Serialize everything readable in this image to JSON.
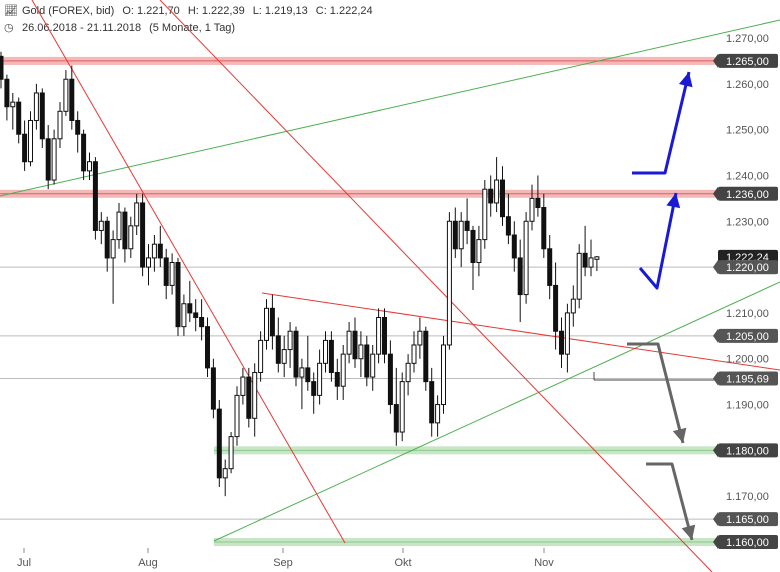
{
  "header": {
    "icon": "chart-icon",
    "symbol": "Gold (FOREX, bid)",
    "open": "O: 1.221,70",
    "high": "H: 1.222,39",
    "low": "L: 1.219,13",
    "close": "C: 1.222,24",
    "clock_icon": "clock-icon",
    "date_range": "26.06.2018 - 21.11.2018",
    "period": "(5 Monate, 1 Tag)"
  },
  "chart_data": {
    "type": "candlestick",
    "ylim": [
      1158,
      1274
    ],
    "y_ticks": [
      {
        "v": 1160,
        "label": "1.160,00"
      },
      {
        "v": 1170,
        "label": "1.170,00"
      },
      {
        "v": 1190,
        "label": "1.190,00"
      },
      {
        "v": 1200,
        "label": "1.200,00"
      },
      {
        "v": 1210,
        "label": "1.210,00"
      },
      {
        "v": 1230,
        "label": "1.230,00"
      },
      {
        "v": 1240,
        "label": "1.240,00"
      },
      {
        "v": 1250,
        "label": "1.250,00"
      },
      {
        "v": 1260,
        "label": "1.260,00"
      },
      {
        "v": 1270,
        "label": "1.270,00"
      }
    ],
    "x_ticks": [
      "Jul",
      "Aug",
      "Sep",
      "Okt",
      "Nov"
    ],
    "levels": [
      {
        "v": 1265,
        "label": "1.265,00",
        "band": "red"
      },
      {
        "v": 1236,
        "label": "1.236,00",
        "band": "red"
      },
      {
        "v": 1220,
        "label": "1.220,00",
        "band": "none"
      },
      {
        "v": 1205,
        "label": "1.205,00",
        "band": "none"
      },
      {
        "v": 1195.69,
        "label": "1.195,69",
        "band": "none"
      },
      {
        "v": 1180,
        "label": "1.180,00",
        "band": "green"
      },
      {
        "v": 1165,
        "label": "1.165,00",
        "band": "none"
      },
      {
        "v": 1160,
        "label": "1.160,00",
        "band": "green"
      }
    ],
    "current_price": {
      "v": 1222.24,
      "label": "1.222,24"
    },
    "candles": [
      [
        1266,
        1267,
        1259,
        1261
      ],
      [
        1261,
        1262,
        1252,
        1255
      ],
      [
        1255,
        1258,
        1250,
        1256
      ],
      [
        1256,
        1257,
        1247,
        1249
      ],
      [
        1249,
        1252,
        1241,
        1243
      ],
      [
        1243,
        1254,
        1242,
        1252
      ],
      [
        1252,
        1260,
        1250,
        1258
      ],
      [
        1258,
        1259,
        1246,
        1248
      ],
      [
        1248,
        1251,
        1237,
        1239
      ],
      [
        1239,
        1250,
        1238,
        1248
      ],
      [
        1248,
        1256,
        1246,
        1254
      ],
      [
        1254,
        1263,
        1253,
        1261
      ],
      [
        1261,
        1264,
        1250,
        1252
      ],
      [
        1252,
        1254,
        1245,
        1249
      ],
      [
        1249,
        1250,
        1239,
        1241
      ],
      [
        1241,
        1245,
        1239,
        1243
      ],
      [
        1243,
        1244,
        1226,
        1228
      ],
      [
        1228,
        1232,
        1225,
        1230
      ],
      [
        1230,
        1231,
        1219,
        1222
      ],
      [
        1222,
        1228,
        1212,
        1226
      ],
      [
        1226,
        1234,
        1224,
        1232
      ],
      [
        1232,
        1233,
        1221,
        1224
      ],
      [
        1224,
        1231,
        1222,
        1229
      ],
      [
        1229,
        1236,
        1227,
        1234
      ],
      [
        1234,
        1236,
        1218,
        1220
      ],
      [
        1220,
        1225,
        1216,
        1222
      ],
      [
        1222,
        1227,
        1219,
        1225
      ],
      [
        1225,
        1229,
        1220,
        1222
      ],
      [
        1222,
        1224,
        1213,
        1216
      ],
      [
        1216,
        1223,
        1214,
        1221
      ],
      [
        1221,
        1222,
        1205,
        1207
      ],
      [
        1207,
        1214,
        1205,
        1212
      ],
      [
        1212,
        1217,
        1208,
        1210
      ],
      [
        1210,
        1213,
        1206,
        1209
      ],
      [
        1209,
        1213,
        1204,
        1207
      ],
      [
        1207,
        1209,
        1196,
        1198
      ],
      [
        1198,
        1200,
        1187,
        1189
      ],
      [
        1189,
        1191,
        1172,
        1174
      ],
      [
        1174,
        1178,
        1170,
        1176
      ],
      [
        1176,
        1184,
        1175,
        1183
      ],
      [
        1183,
        1194,
        1181,
        1192
      ],
      [
        1192,
        1198,
        1190,
        1196
      ],
      [
        1196,
        1198,
        1185,
        1187
      ],
      [
        1187,
        1199,
        1183,
        1197
      ],
      [
        1197,
        1206,
        1195,
        1204
      ],
      [
        1204,
        1213,
        1202,
        1211
      ],
      [
        1211,
        1214,
        1202,
        1205
      ],
      [
        1205,
        1209,
        1197,
        1199
      ],
      [
        1199,
        1205,
        1196,
        1202
      ],
      [
        1202,
        1208,
        1198,
        1206
      ],
      [
        1206,
        1207,
        1194,
        1196
      ],
      [
        1196,
        1200,
        1189,
        1198
      ],
      [
        1198,
        1205,
        1193,
        1195
      ],
      [
        1195,
        1197,
        1188,
        1192
      ],
      [
        1192,
        1202,
        1190,
        1199
      ],
      [
        1199,
        1206,
        1197,
        1204
      ],
      [
        1204,
        1206,
        1195,
        1197
      ],
      [
        1197,
        1200,
        1191,
        1194
      ],
      [
        1194,
        1203,
        1191,
        1201
      ],
      [
        1201,
        1208,
        1199,
        1206
      ],
      [
        1206,
        1209,
        1198,
        1200
      ],
      [
        1200,
        1206,
        1196,
        1203
      ],
      [
        1203,
        1205,
        1194,
        1196
      ],
      [
        1196,
        1203,
        1193,
        1201
      ],
      [
        1201,
        1211,
        1199,
        1209
      ],
      [
        1209,
        1211,
        1199,
        1201
      ],
      [
        1201,
        1204,
        1188,
        1190
      ],
      [
        1190,
        1198,
        1181,
        1184
      ],
      [
        1184,
        1197,
        1182,
        1195
      ],
      [
        1195,
        1201,
        1192,
        1199
      ],
      [
        1199,
        1206,
        1197,
        1203
      ],
      [
        1203,
        1209,
        1200,
        1206
      ],
      [
        1206,
        1207,
        1193,
        1195
      ],
      [
        1195,
        1198,
        1183,
        1186
      ],
      [
        1186,
        1192,
        1183,
        1190
      ],
      [
        1190,
        1205,
        1188,
        1203
      ],
      [
        1203,
        1232,
        1202,
        1230
      ],
      [
        1230,
        1233,
        1222,
        1224
      ],
      [
        1224,
        1232,
        1220,
        1230
      ],
      [
        1230,
        1235,
        1225,
        1228
      ],
      [
        1228,
        1229,
        1215,
        1221
      ],
      [
        1221,
        1229,
        1218,
        1226
      ],
      [
        1226,
        1239,
        1224,
        1237
      ],
      [
        1237,
        1240,
        1231,
        1234
      ],
      [
        1234,
        1244,
        1232,
        1239
      ],
      [
        1239,
        1242,
        1229,
        1231
      ],
      [
        1231,
        1236,
        1225,
        1227
      ],
      [
        1227,
        1230,
        1219,
        1222
      ],
      [
        1222,
        1226,
        1208,
        1214
      ],
      [
        1214,
        1232,
        1212,
        1230
      ],
      [
        1230,
        1238,
        1228,
        1235
      ],
      [
        1235,
        1240,
        1231,
        1233
      ],
      [
        1233,
        1236,
        1222,
        1224
      ],
      [
        1224,
        1227,
        1213,
        1216
      ],
      [
        1216,
        1221,
        1202,
        1206
      ],
      [
        1206,
        1209,
        1198,
        1201
      ],
      [
        1201,
        1212,
        1197,
        1210
      ],
      [
        1210,
        1216,
        1207,
        1213
      ],
      [
        1213,
        1225,
        1211,
        1223
      ],
      [
        1223,
        1229,
        1218,
        1220
      ],
      [
        1220,
        1226,
        1218,
        1222
      ],
      [
        1221.7,
        1222.39,
        1219.13,
        1222.24
      ]
    ]
  }
}
